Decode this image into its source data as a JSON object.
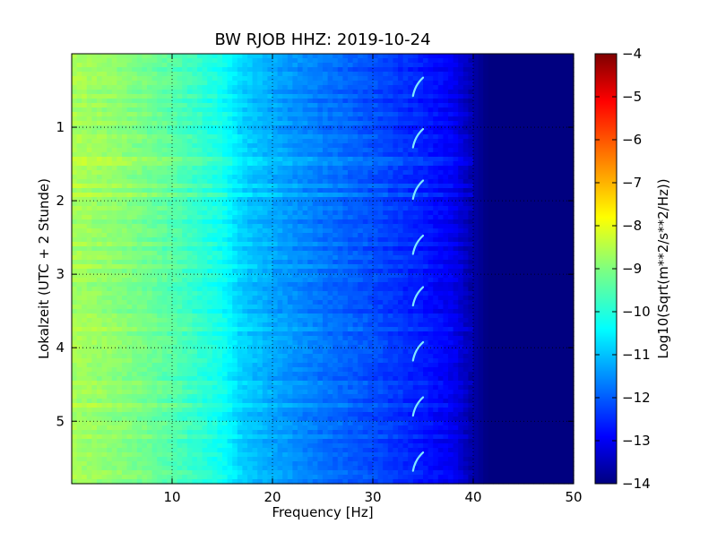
{
  "chart_data": {
    "type": "heatmap",
    "title": "BW RJOB HHZ: 2019-10-24",
    "xlabel": "Frequency [Hz]",
    "ylabel": "Lokalzeit (UTC + 2 Stunde)",
    "xlim": [
      0,
      50
    ],
    "ylim": [
      5.85,
      0
    ],
    "x_ticks": [
      10,
      20,
      30,
      40,
      50
    ],
    "y_ticks": [
      1,
      2,
      3,
      4,
      5
    ],
    "grid": true,
    "colorbar": {
      "label": "Log10(Sqrt(m**2/s**2/Hz))",
      "range": [
        -14,
        -4
      ],
      "ticks": [
        -4,
        -5,
        -6,
        -7,
        -8,
        -9,
        -10,
        -11,
        -12,
        -13,
        -14
      ],
      "colormap": "jet"
    },
    "background_level_profile": [
      {
        "freq": 0,
        "value": -8.6
      },
      {
        "freq": 5,
        "value": -8.9
      },
      {
        "freq": 10,
        "value": -9.4
      },
      {
        "freq": 15,
        "value": -10.1
      },
      {
        "freq": 17,
        "value": -10.7
      },
      {
        "freq": 20,
        "value": -11.1
      },
      {
        "freq": 25,
        "value": -11.6
      },
      {
        "freq": 30,
        "value": -12.0
      },
      {
        "freq": 35,
        "value": -12.5
      },
      {
        "freq": 38,
        "value": -12.9
      },
      {
        "freq": 40,
        "value": -13.6
      },
      {
        "freq": 41.5,
        "value": -14.0
      },
      {
        "freq": 50,
        "value": -14.0
      }
    ],
    "chirp_features": {
      "freq_start": 34.0,
      "freq_end": 35.0,
      "time_span": 0.25,
      "times": [
        0.45,
        1.15,
        1.85,
        2.6,
        3.3,
        4.05,
        4.8,
        5.55
      ]
    }
  }
}
